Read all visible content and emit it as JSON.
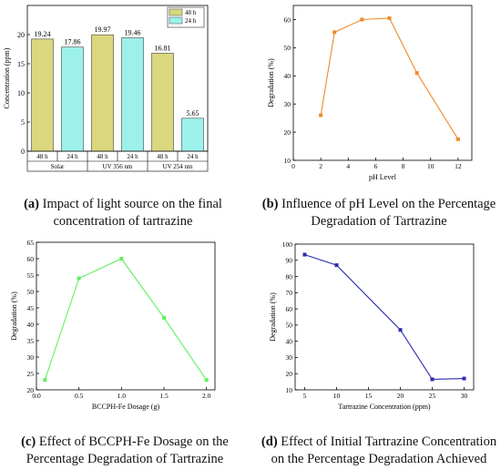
{
  "chart_data": [
    {
      "type": "bar",
      "ylabel": "Concentration (ppm)",
      "ylim": [
        0,
        25
      ],
      "yticks": [
        0,
        5,
        10,
        15,
        20
      ],
      "bar_labels": [
        "48 h",
        "24 h",
        "48 h",
        "24 h",
        "48 h",
        "24 h"
      ],
      "groups": [
        "Solar",
        "UV 356 nm",
        "UV 254 nm"
      ],
      "series": [
        {
          "name": "48 h",
          "color": "#dbd77e",
          "values": [
            19.24,
            19.97,
            16.81
          ]
        },
        {
          "name": "24 h",
          "color": "#9cf2ea",
          "values": [
            17.86,
            19.46,
            5.65
          ]
        }
      ],
      "value_labels": [
        "19.24",
        "17.86",
        "19.97",
        "19.46",
        "16.81",
        "5.65"
      ],
      "legend_position": "top-right",
      "caption_letter": "(a)",
      "caption_text": "Impact of light source on the final concentration of tartrazine"
    },
    {
      "type": "line",
      "xlabel": "pH Level",
      "ylabel": "Degradation (%)",
      "xlim": [
        0,
        13
      ],
      "ylim": [
        10,
        65
      ],
      "xticks": [
        0,
        2,
        4,
        6,
        8,
        10,
        12
      ],
      "yticks": [
        10,
        20,
        30,
        40,
        50,
        60
      ],
      "x": [
        2,
        3,
        5,
        7,
        9,
        12
      ],
      "y": [
        26,
        55.5,
        60,
        60.5,
        41,
        17.5
      ],
      "color": "#f08a2a",
      "caption_letter": "(b)",
      "caption_text": "Influence of pH Level on the Percentage Degradation of Tartrazine"
    },
    {
      "type": "line",
      "xlabel": "BCCPH-Fe Dosage (g)",
      "ylabel": "Degradation (%)",
      "xlim": [
        0,
        2.1
      ],
      "ylim": [
        20,
        65
      ],
      "xticks": [
        0.0,
        0.5,
        1.0,
        1.5,
        2.0
      ],
      "xtick_labels": [
        "0.0",
        "0.5",
        "1.0",
        "1.5",
        "2.0"
      ],
      "yticks": [
        20,
        25,
        30,
        35,
        40,
        45,
        50,
        55,
        60,
        65
      ],
      "x": [
        0.1,
        0.5,
        1.0,
        1.5,
        2.0
      ],
      "y": [
        23,
        54,
        60,
        42,
        23
      ],
      "color": "#5ef05e",
      "caption_letter": "(c)",
      "caption_text": "Effect of BCCPH-Fe Dosage on the Percentage Degradation of Tartrazine"
    },
    {
      "type": "line",
      "xlabel": "Tartrazine Concentration (ppm)",
      "ylabel": "Degradation (%)",
      "xlim": [
        3.5,
        31.5
      ],
      "ylim": [
        10,
        100
      ],
      "xticks": [
        5,
        10,
        15,
        20,
        25,
        30
      ],
      "yticks": [
        10,
        20,
        30,
        40,
        50,
        60,
        70,
        80,
        90,
        100
      ],
      "x": [
        5,
        10,
        20,
        25,
        30
      ],
      "y": [
        93.5,
        87,
        47,
        16.5,
        17
      ],
      "color": "#2b2bb0",
      "caption_letter": "(d)",
      "caption_text": "Effect of Initial Tartrazine Concentration on the Percentage Degradation Achieved"
    }
  ]
}
